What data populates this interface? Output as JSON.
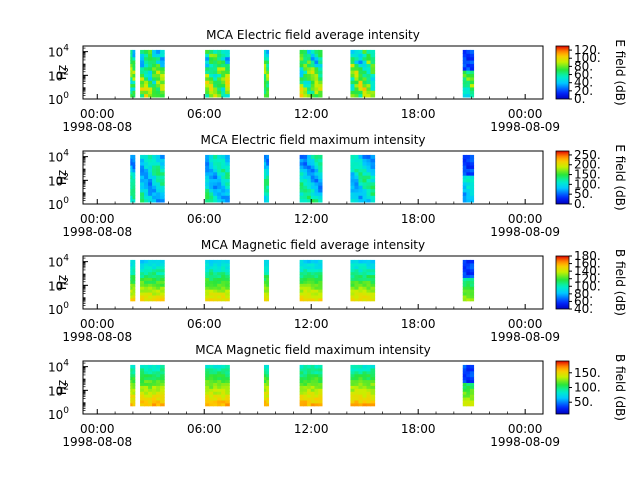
{
  "figure": {
    "time_axis": {
      "ticks": [
        "00:00",
        "06:00",
        "12:00",
        "18:00",
        "00:00"
      ],
      "date_start": "1998-08-08",
      "date_end": "1998-08-09",
      "range_hours": [
        -0.8,
        25.0
      ],
      "major_step_hours": 6,
      "minor_step_hours": 1
    },
    "freq_axis": {
      "ylabel": "Hz",
      "scale": "log",
      "ylim": [
        1,
        30000
      ],
      "tick_bases": [
        "10",
        "10",
        "10"
      ],
      "tick_exponents": [
        "0",
        "2",
        "4"
      ]
    }
  },
  "chart_data": [
    {
      "type": "heatmap",
      "title": "MCA  Electric field average intensity",
      "colorbar": {
        "label": "E field (dB)",
        "min": 0,
        "max": 130,
        "ticks": [
          "0.",
          "20.",
          "40.",
          "60.",
          "80.",
          "100.",
          "120."
        ]
      },
      "segments_hours": [
        [
          1.85,
          2.1
        ],
        [
          2.4,
          3.75
        ],
        [
          6.05,
          7.4
        ],
        [
          9.35,
          9.6
        ],
        [
          11.35,
          12.6
        ],
        [
          14.2,
          15.55
        ],
        [
          20.5,
          21.1
        ]
      ],
      "freq_range_hz": [
        1.5,
        14000
      ]
    },
    {
      "type": "heatmap",
      "title": "MCA  Electric field maximum intensity",
      "colorbar": {
        "label": "E field (dB)",
        "min": 0,
        "max": 270,
        "ticks": [
          "0.",
          "50.",
          "100.",
          "150.",
          "200.",
          "250."
        ]
      },
      "segments_hours": [
        [
          1.85,
          2.1
        ],
        [
          2.4,
          3.75
        ],
        [
          6.05,
          7.4
        ],
        [
          9.35,
          9.6
        ],
        [
          11.35,
          12.6
        ],
        [
          14.2,
          15.55
        ],
        [
          20.5,
          21.1
        ]
      ],
      "freq_range_hz": [
        1.5,
        14000
      ]
    },
    {
      "type": "heatmap",
      "title": "MCA  Magnetic field average intensity",
      "colorbar": {
        "label": "B field (dB)",
        "min": 40,
        "max": 180,
        "ticks": [
          "40.",
          "60.",
          "80.",
          "100.",
          "120.",
          "140.",
          "160.",
          "180."
        ]
      },
      "segments_hours": [
        [
          1.85,
          2.1
        ],
        [
          2.4,
          3.75
        ],
        [
          6.05,
          7.4
        ],
        [
          9.35,
          9.6
        ],
        [
          11.35,
          12.6
        ],
        [
          14.2,
          15.55
        ],
        [
          20.5,
          21.1
        ]
      ],
      "freq_range_hz": [
        5,
        14000
      ]
    },
    {
      "type": "heatmap",
      "title": "MCA  Magnetic field maximum intensity",
      "colorbar": {
        "label": "B field (dB)",
        "min": 10,
        "max": 190,
        "ticks": [
          "50.",
          "100.",
          "150."
        ]
      },
      "segments_hours": [
        [
          1.85,
          2.1
        ],
        [
          2.4,
          3.75
        ],
        [
          6.05,
          7.4
        ],
        [
          9.35,
          9.6
        ],
        [
          11.35,
          12.6
        ],
        [
          14.2,
          15.55
        ],
        [
          20.5,
          21.1
        ]
      ],
      "freq_range_hz": [
        5,
        14000
      ]
    }
  ]
}
